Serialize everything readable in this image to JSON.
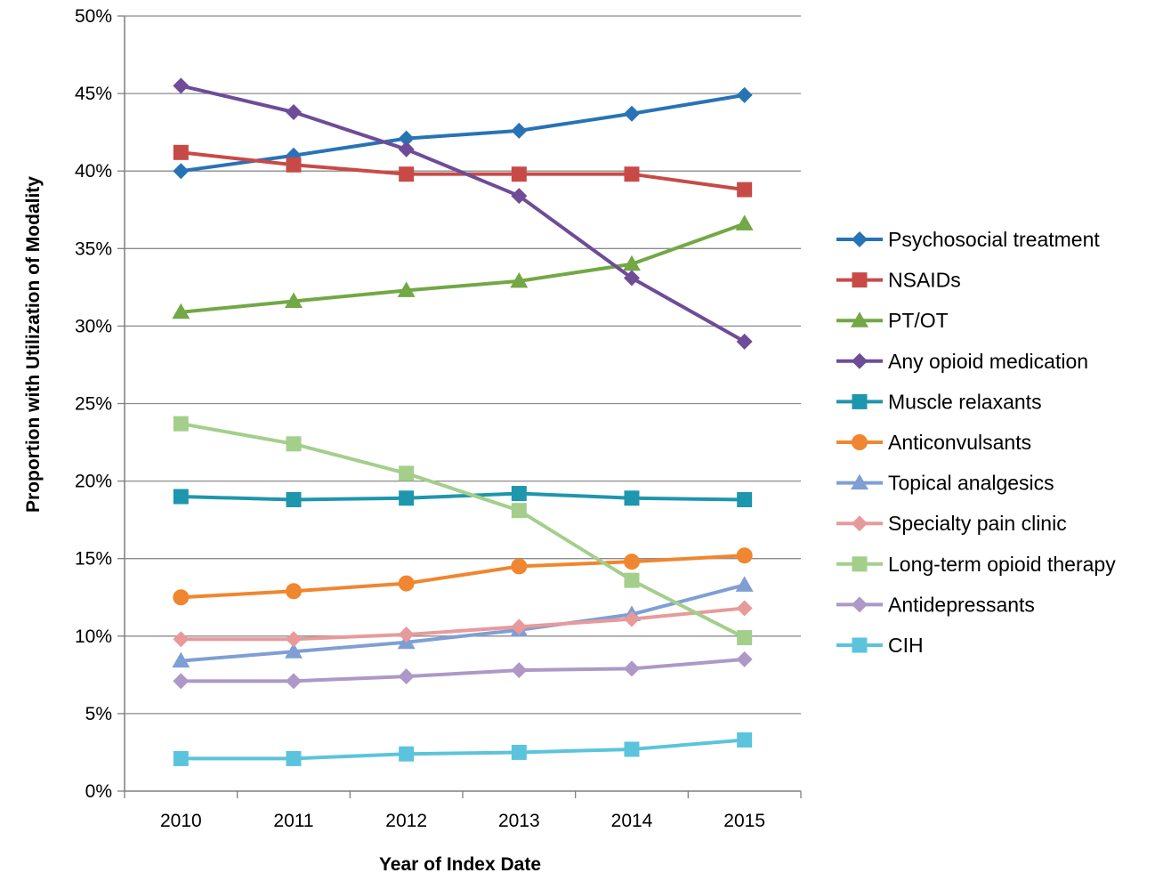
{
  "chart_data": {
    "type": "line",
    "title": "",
    "xlabel": "Year of Index Date",
    "ylabel": "Proportion with Utilization of Modality",
    "x": [
      "2010",
      "2011",
      "2012",
      "2013",
      "2014",
      "2015"
    ],
    "ylim": [
      0,
      50
    ],
    "yticks": [
      0,
      5,
      10,
      15,
      20,
      25,
      30,
      35,
      40,
      45,
      50
    ],
    "ytick_labels": [
      "0%",
      "5%",
      "10%",
      "15%",
      "20%",
      "25%",
      "30%",
      "35%",
      "40%",
      "45%",
      "50%"
    ],
    "grid": "horizontal",
    "legend_position": "right",
    "series": [
      {
        "name": "Psychosocial treatment",
        "color": "#2873b5",
        "marker": "diamond",
        "values": [
          40.0,
          41.0,
          42.1,
          42.6,
          43.7,
          44.9
        ]
      },
      {
        "name": "NSAIDs",
        "color": "#c84a47",
        "marker": "square",
        "values": [
          41.2,
          40.4,
          39.8,
          39.8,
          39.8,
          38.8
        ]
      },
      {
        "name": "PT/OT",
        "color": "#72a845",
        "marker": "triangle",
        "values": [
          30.9,
          31.6,
          32.3,
          32.9,
          34.0,
          36.6
        ]
      },
      {
        "name": "Any opioid medication",
        "color": "#6e4c97",
        "marker": "diamond",
        "values": [
          45.5,
          43.8,
          41.4,
          38.4,
          33.1,
          29.0
        ]
      },
      {
        "name": "Muscle relaxants",
        "color": "#1e96ad",
        "marker": "square",
        "values": [
          19.0,
          18.8,
          18.9,
          19.2,
          18.9,
          18.8
        ]
      },
      {
        "name": "Anticonvulsants",
        "color": "#f0862f",
        "marker": "circle",
        "values": [
          12.5,
          12.9,
          13.4,
          14.5,
          14.8,
          15.2
        ]
      },
      {
        "name": "Topical analgesics",
        "color": "#7f9fd4",
        "marker": "triangle",
        "values": [
          8.4,
          9.0,
          9.6,
          10.4,
          11.4,
          13.3
        ]
      },
      {
        "name": "Specialty pain clinic",
        "color": "#e89a9a",
        "marker": "diamond",
        "values": [
          9.8,
          9.8,
          10.1,
          10.6,
          11.1,
          11.8
        ]
      },
      {
        "name": "Long-term opioid therapy",
        "color": "#a3cf8b",
        "marker": "square",
        "values": [
          23.7,
          22.4,
          20.5,
          18.1,
          13.6,
          9.9
        ]
      },
      {
        "name": "Antidepressants",
        "color": "#ad98c8",
        "marker": "diamond",
        "values": [
          7.1,
          7.1,
          7.4,
          7.8,
          7.9,
          8.5
        ]
      },
      {
        "name": "CIH",
        "color": "#5bc4dc",
        "marker": "square",
        "values": [
          2.1,
          2.1,
          2.4,
          2.5,
          2.7,
          3.3
        ]
      }
    ]
  }
}
